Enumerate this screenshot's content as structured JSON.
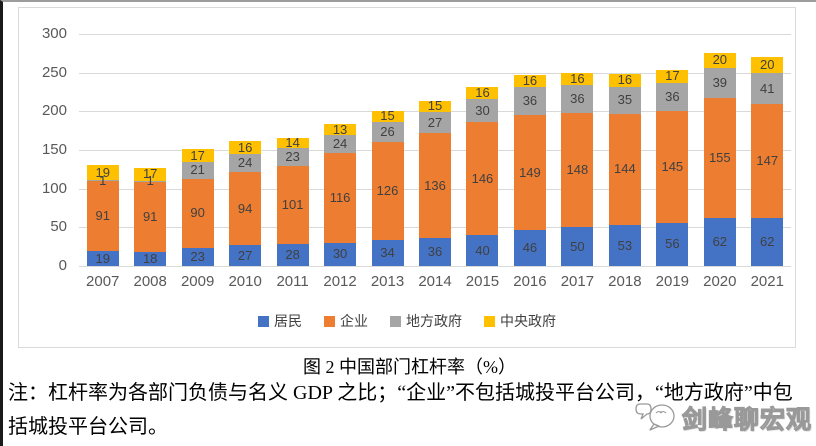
{
  "page": {
    "caption": "图 2  中国部门杠杆率（%）",
    "note": "注：杠杆率为各部门负债与名义 GDP 之比；“企业”不包括城投平台公司，“地方政府”中包括城投平台公司。",
    "watermark": "剑峰聊宏观"
  },
  "chart_data": {
    "type": "bar",
    "stacked": true,
    "title": "图 2 中国部门杠杆率（%）",
    "categories": [
      "2007",
      "2008",
      "2009",
      "2010",
      "2011",
      "2012",
      "2013",
      "2014",
      "2015",
      "2016",
      "2017",
      "2018",
      "2019",
      "2020",
      "2021"
    ],
    "series": [
      {
        "name": "居民",
        "color": "#4472C4",
        "values": [
          19,
          18,
          23,
          27,
          28,
          30,
          34,
          36,
          40,
          46,
          50,
          53,
          56,
          62,
          62
        ]
      },
      {
        "name": "企业",
        "color": "#ED7D31",
        "values": [
          91,
          91,
          90,
          94,
          101,
          116,
          126,
          136,
          146,
          149,
          148,
          144,
          145,
          155,
          147
        ]
      },
      {
        "name": "地方政府",
        "color": "#A5A5A5",
        "values": [
          1,
          1,
          21,
          24,
          23,
          24,
          26,
          27,
          30,
          36,
          36,
          35,
          36,
          39,
          41
        ]
      },
      {
        "name": "中央政府",
        "color": "#FFC000",
        "values": [
          19,
          17,
          17,
          16,
          14,
          13,
          15,
          15,
          16,
          16,
          16,
          16,
          17,
          20,
          20
        ]
      }
    ],
    "xlabel": "",
    "ylabel": "",
    "ylim": [
      0,
      300
    ],
    "yticks": [
      0,
      50,
      100,
      150,
      200,
      250,
      300
    ],
    "grid": true,
    "data_labels": true,
    "legend_position": "bottom",
    "label_color": "#404040",
    "axis_label_color": "#595959",
    "gridline_color": "#D9D9D9"
  }
}
